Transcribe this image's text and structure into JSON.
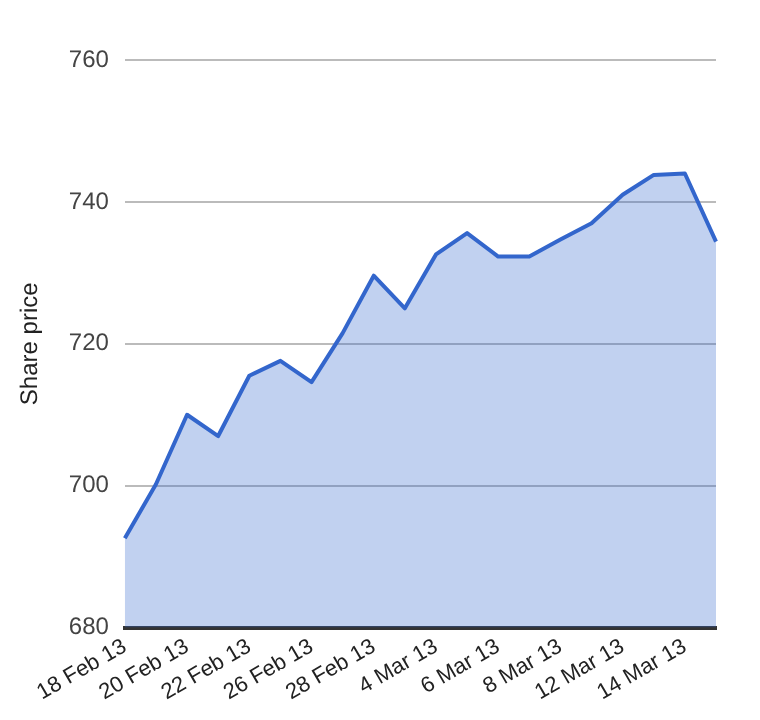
{
  "chart_data": {
    "type": "area",
    "ylabel": "Share price",
    "categories": [
      "18 Feb 13",
      null,
      "20 Feb 13",
      null,
      "22 Feb 13",
      null,
      "26 Feb 13",
      null,
      "28 Feb 13",
      null,
      "4 Mar 13",
      null,
      "6 Mar 13",
      null,
      "8 Mar 13",
      null,
      "12 Mar 13",
      null,
      "14 Mar 13",
      null
    ],
    "series": [
      {
        "color": "#3366cc",
        "values": [
          692.6,
          700.2,
          710,
          707,
          715.5,
          717.6,
          714.6,
          721.5,
          729.6,
          725,
          732.6,
          735.6,
          732.3,
          732.3,
          734.7,
          737,
          741,
          743.8,
          744,
          734.4
        ]
      }
    ],
    "ylim": [
      680,
      760
    ],
    "yticks": [
      680,
      700,
      720,
      740,
      760
    ],
    "grid": "y",
    "legend": false,
    "marker": "none",
    "line_style": "solid"
  }
}
